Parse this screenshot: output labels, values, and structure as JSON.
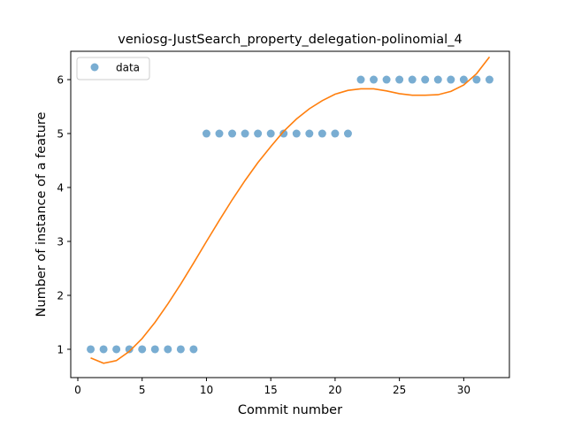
{
  "chart_data": {
    "type": "scatter",
    "title": "veniosg-JustSearch_property_delegation-polinomial_4",
    "xlabel": "Commit number",
    "ylabel": "Number of instance of a feature",
    "xlim": [
      -0.55,
      33.55
    ],
    "ylim": [
      0.475,
      6.525
    ],
    "xticks": [
      0,
      5,
      10,
      15,
      20,
      25,
      30
    ],
    "yticks": [
      1,
      2,
      3,
      4,
      5,
      6
    ],
    "grid": false,
    "legend": {
      "placement": "top-left",
      "entries": [
        "data"
      ]
    },
    "series": [
      {
        "name": "data",
        "kind": "scatter",
        "color": "#1f77b4",
        "x": [
          1,
          2,
          3,
          4,
          5,
          6,
          7,
          8,
          9,
          10,
          11,
          12,
          13,
          14,
          15,
          16,
          17,
          18,
          19,
          20,
          21,
          22,
          23,
          24,
          25,
          26,
          27,
          28,
          29,
          30,
          31,
          32
        ],
        "y": [
          1,
          1,
          1,
          1,
          1,
          1,
          1,
          1,
          1,
          5,
          5,
          5,
          5,
          5,
          5,
          5,
          5,
          5,
          5,
          5,
          5,
          6,
          6,
          6,
          6,
          6,
          6,
          6,
          6,
          6,
          6,
          6
        ]
      },
      {
        "kind": "line",
        "color": "#ff7f0e",
        "x": [
          1,
          2,
          3,
          4,
          5,
          6,
          7,
          8,
          9,
          10,
          11,
          12,
          13,
          14,
          15,
          16,
          17,
          18,
          19,
          20,
          21,
          22,
          23,
          24,
          25,
          26,
          27,
          28,
          29,
          30,
          31,
          32
        ],
        "y": [
          0.84,
          0.74,
          0.79,
          0.96,
          1.2,
          1.5,
          1.84,
          2.21,
          2.6,
          3.0,
          3.39,
          3.77,
          4.13,
          4.46,
          4.76,
          5.04,
          5.27,
          5.46,
          5.61,
          5.73,
          5.8,
          5.83,
          5.83,
          5.79,
          5.74,
          5.71,
          5.71,
          5.72,
          5.78,
          5.9,
          6.11,
          6.42
        ]
      }
    ]
  }
}
